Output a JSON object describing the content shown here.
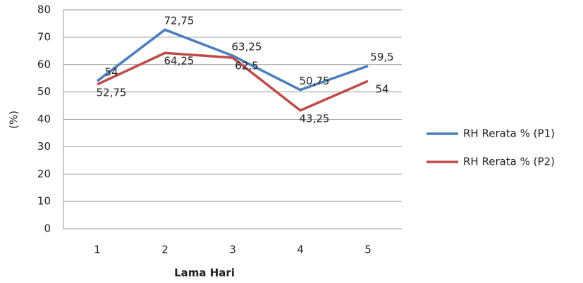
{
  "chart_data": {
    "type": "line",
    "x_label": "Lama Hari",
    "y_label": "(%)",
    "categories": [
      "1",
      "2",
      "3",
      "4",
      "5"
    ],
    "series": [
      {
        "name": "RH Rerata % (P1)",
        "color": "#4a7ebb",
        "values": [
          54,
          72.75,
          63.25,
          50.75,
          59.5
        ],
        "value_labels": [
          "54",
          "72,75",
          "63,25",
          "50,75",
          "59,5"
        ]
      },
      {
        "name": "RH Rerata % (P2)",
        "color": "#be4b48",
        "values": [
          52.75,
          64.25,
          62.5,
          43.25,
          54
        ],
        "value_labels": [
          "52,75",
          "64,25",
          "62,5",
          "43,25",
          "54"
        ]
      }
    ],
    "ylim": [
      0,
      80
    ],
    "yticks": [
      0,
      10,
      20,
      30,
      40,
      50,
      60,
      70,
      80
    ],
    "grid": true,
    "legend": "right"
  }
}
